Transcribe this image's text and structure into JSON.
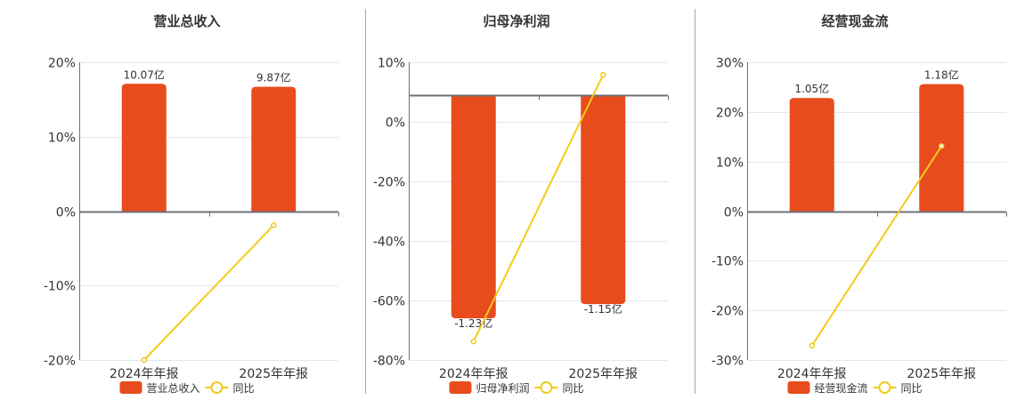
{
  "colors": {
    "bar": "#e84c1c",
    "line": "#f2cb1a",
    "axis": "#6e7079",
    "grid": "#e0e6f1",
    "divider": "#a8a8a8",
    "text": "#333333"
  },
  "chart_data": [
    {
      "type": "bar+line",
      "title": "营业总收入",
      "categories": [
        "2024年年报",
        "2025年年报"
      ],
      "series": [
        {
          "name": "营业总收入",
          "type": "bar",
          "values": [
            17.1,
            16.7
          ],
          "labels": [
            "10.07亿",
            "9.87亿"
          ]
        },
        {
          "name": "同比",
          "type": "line",
          "values": [
            -20.0,
            -1.9
          ]
        }
      ],
      "yticks": [
        "20%",
        "10%",
        "0%",
        "-10%",
        "-20%"
      ],
      "ylim": [
        -20,
        20
      ],
      "grid": true,
      "legend_position": "bottom"
    },
    {
      "type": "bar+line",
      "title": "归母净利润",
      "categories": [
        "2024年年报",
        "2025年年报"
      ],
      "series": [
        {
          "name": "归母净利润",
          "type": "bar",
          "values": [
            -67.4,
            -63.1
          ],
          "labels": [
            "-1.23亿",
            "-1.15亿"
          ]
        },
        {
          "name": "同比",
          "type": "line",
          "values": [
            -74.4,
            6.2
          ]
        }
      ],
      "yticks": [
        "10%",
        "0%",
        "-20%",
        "-40%",
        "-60%",
        "-80%"
      ],
      "ylim": [
        -80,
        10
      ],
      "grid": true,
      "legend_position": "bottom"
    },
    {
      "type": "bar+line",
      "title": "经营现金流",
      "categories": [
        "2024年年报",
        "2025年年报"
      ],
      "series": [
        {
          "name": "经营现金流",
          "type": "bar",
          "values": [
            22.8,
            25.6
          ],
          "labels": [
            "1.05亿",
            "1.18亿"
          ]
        },
        {
          "name": "同比",
          "type": "line",
          "values": [
            -27.1,
            13.1
          ]
        }
      ],
      "yticks": [
        "30%",
        "20%",
        "10%",
        "0%",
        "-10%",
        "-20%",
        "-30%"
      ],
      "ylim": [
        -30,
        30
      ],
      "grid": true,
      "legend_position": "bottom"
    }
  ],
  "panels": [
    {
      "title": "营业总收入",
      "legend_bar": "营业总收入",
      "legend_line": "同比"
    },
    {
      "title": "归母净利润",
      "legend_bar": "归母净利润",
      "legend_line": "同比"
    },
    {
      "title": "经营现金流",
      "legend_bar": "经营现金流",
      "legend_line": "同比"
    }
  ]
}
